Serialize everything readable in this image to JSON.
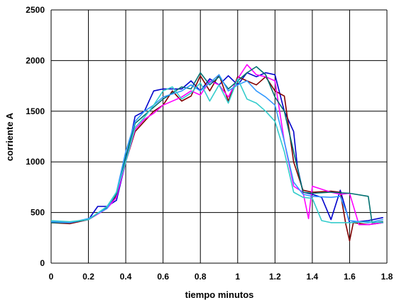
{
  "chart_data": {
    "type": "line",
    "title": "",
    "xlabel": "tiempo minutos",
    "ylabel": "corriente A",
    "xlim": [
      0,
      1.8
    ],
    "ylim": [
      0,
      2500
    ],
    "x_ticks": [
      "0",
      "0.2",
      "0.4",
      "0.6",
      "0.8",
      "1",
      "1.2",
      "1.4",
      "1.6",
      "1.8"
    ],
    "y_ticks": [
      "0",
      "500",
      "1000",
      "1500",
      "2000",
      "2500"
    ],
    "grid": true,
    "legend": "none",
    "series": [
      {
        "color": "#0000cc",
        "points": [
          [
            0,
            410
          ],
          [
            0.1,
            400
          ],
          [
            0.2,
            430
          ],
          [
            0.25,
            560
          ],
          [
            0.3,
            560
          ],
          [
            0.35,
            620
          ],
          [
            0.4,
            1000
          ],
          [
            0.45,
            1450
          ],
          [
            0.5,
            1500
          ],
          [
            0.55,
            1700
          ],
          [
            0.6,
            1720
          ],
          [
            0.7,
            1720
          ],
          [
            0.75,
            1800
          ],
          [
            0.8,
            1700
          ],
          [
            0.85,
            1820
          ],
          [
            0.9,
            1760
          ],
          [
            0.95,
            1850
          ],
          [
            1.0,
            1760
          ],
          [
            1.05,
            1880
          ],
          [
            1.1,
            1840
          ],
          [
            1.15,
            1880
          ],
          [
            1.2,
            1860
          ],
          [
            1.25,
            1500
          ],
          [
            1.3,
            1300
          ],
          [
            1.32,
            950
          ],
          [
            1.35,
            700
          ],
          [
            1.4,
            680
          ],
          [
            1.45,
            650
          ],
          [
            1.5,
            430
          ],
          [
            1.55,
            720
          ],
          [
            1.6,
            400
          ],
          [
            1.7,
            420
          ],
          [
            1.78,
            450
          ]
        ]
      },
      {
        "color": "#800000",
        "points": [
          [
            0,
            400
          ],
          [
            0.1,
            390
          ],
          [
            0.2,
            430
          ],
          [
            0.3,
            550
          ],
          [
            0.35,
            660
          ],
          [
            0.4,
            1000
          ],
          [
            0.45,
            1300
          ],
          [
            0.5,
            1400
          ],
          [
            0.55,
            1500
          ],
          [
            0.6,
            1560
          ],
          [
            0.65,
            1700
          ],
          [
            0.7,
            1600
          ],
          [
            0.75,
            1650
          ],
          [
            0.8,
            1850
          ],
          [
            0.85,
            1700
          ],
          [
            0.9,
            1860
          ],
          [
            0.95,
            1600
          ],
          [
            1.0,
            1840
          ],
          [
            1.05,
            1800
          ],
          [
            1.1,
            1760
          ],
          [
            1.15,
            1840
          ],
          [
            1.2,
            1700
          ],
          [
            1.25,
            1650
          ],
          [
            1.3,
            1000
          ],
          [
            1.35,
            720
          ],
          [
            1.4,
            700
          ],
          [
            1.5,
            710
          ],
          [
            1.55,
            700
          ],
          [
            1.58,
            380
          ],
          [
            1.6,
            220
          ],
          [
            1.62,
            400
          ],
          [
            1.7,
            380
          ],
          [
            1.78,
            400
          ]
        ]
      },
      {
        "color": "#ff00ff",
        "points": [
          [
            0,
            410
          ],
          [
            0.1,
            400
          ],
          [
            0.2,
            430
          ],
          [
            0.3,
            540
          ],
          [
            0.35,
            650
          ],
          [
            0.4,
            1000
          ],
          [
            0.45,
            1320
          ],
          [
            0.5,
            1420
          ],
          [
            0.55,
            1480
          ],
          [
            0.6,
            1560
          ],
          [
            0.7,
            1640
          ],
          [
            0.75,
            1700
          ],
          [
            0.8,
            1660
          ],
          [
            0.85,
            1800
          ],
          [
            0.9,
            1760
          ],
          [
            0.95,
            1640
          ],
          [
            1.0,
            1820
          ],
          [
            1.05,
            1960
          ],
          [
            1.1,
            1860
          ],
          [
            1.15,
            1840
          ],
          [
            1.2,
            1800
          ],
          [
            1.25,
            1200
          ],
          [
            1.3,
            760
          ],
          [
            1.35,
            700
          ],
          [
            1.38,
            440
          ],
          [
            1.4,
            760
          ],
          [
            1.5,
            700
          ],
          [
            1.55,
            680
          ],
          [
            1.6,
            690
          ],
          [
            1.65,
            380
          ],
          [
            1.7,
            380
          ],
          [
            1.78,
            400
          ]
        ]
      },
      {
        "color": "#007070",
        "points": [
          [
            0,
            400
          ],
          [
            0.1,
            400
          ],
          [
            0.2,
            430
          ],
          [
            0.3,
            550
          ],
          [
            0.35,
            680
          ],
          [
            0.4,
            1050
          ],
          [
            0.45,
            1380
          ],
          [
            0.5,
            1460
          ],
          [
            0.55,
            1540
          ],
          [
            0.6,
            1620
          ],
          [
            0.7,
            1740
          ],
          [
            0.75,
            1720
          ],
          [
            0.8,
            1880
          ],
          [
            0.85,
            1760
          ],
          [
            0.9,
            1840
          ],
          [
            0.95,
            1720
          ],
          [
            1.0,
            1800
          ],
          [
            1.05,
            1880
          ],
          [
            1.1,
            1940
          ],
          [
            1.15,
            1860
          ],
          [
            1.2,
            1640
          ],
          [
            1.25,
            1500
          ],
          [
            1.3,
            1100
          ],
          [
            1.35,
            700
          ],
          [
            1.4,
            690
          ],
          [
            1.5,
            700
          ],
          [
            1.6,
            690
          ],
          [
            1.7,
            660
          ],
          [
            1.72,
            400
          ],
          [
            1.78,
            410
          ]
        ]
      },
      {
        "color": "#3399ff",
        "points": [
          [
            0,
            410
          ],
          [
            0.1,
            400
          ],
          [
            0.2,
            440
          ],
          [
            0.3,
            540
          ],
          [
            0.35,
            700
          ],
          [
            0.4,
            1100
          ],
          [
            0.45,
            1400
          ],
          [
            0.5,
            1500
          ],
          [
            0.55,
            1560
          ],
          [
            0.6,
            1640
          ],
          [
            0.7,
            1700
          ],
          [
            0.75,
            1760
          ],
          [
            0.8,
            1700
          ],
          [
            0.85,
            1780
          ],
          [
            0.9,
            1860
          ],
          [
            0.95,
            1700
          ],
          [
            1.0,
            1760
          ],
          [
            1.05,
            1800
          ],
          [
            1.1,
            1700
          ],
          [
            1.15,
            1640
          ],
          [
            1.2,
            1560
          ],
          [
            1.25,
            1200
          ],
          [
            1.3,
            800
          ],
          [
            1.35,
            680
          ],
          [
            1.4,
            660
          ],
          [
            1.5,
            650
          ],
          [
            1.55,
            660
          ],
          [
            1.6,
            420
          ],
          [
            1.7,
            400
          ],
          [
            1.78,
            430
          ]
        ]
      },
      {
        "color": "#33cccc",
        "points": [
          [
            0,
            420
          ],
          [
            0.1,
            410
          ],
          [
            0.2,
            430
          ],
          [
            0.3,
            560
          ],
          [
            0.35,
            700
          ],
          [
            0.4,
            1000
          ],
          [
            0.45,
            1340
          ],
          [
            0.5,
            1440
          ],
          [
            0.55,
            1560
          ],
          [
            0.6,
            1700
          ],
          [
            0.65,
            1740
          ],
          [
            0.7,
            1620
          ],
          [
            0.75,
            1680
          ],
          [
            0.8,
            1780
          ],
          [
            0.85,
            1600
          ],
          [
            0.9,
            1760
          ],
          [
            0.95,
            1580
          ],
          [
            1.0,
            1820
          ],
          [
            1.05,
            1620
          ],
          [
            1.1,
            1580
          ],
          [
            1.15,
            1500
          ],
          [
            1.2,
            1400
          ],
          [
            1.25,
            1100
          ],
          [
            1.3,
            700
          ],
          [
            1.35,
            650
          ],
          [
            1.4,
            640
          ],
          [
            1.45,
            420
          ],
          [
            1.5,
            400
          ],
          [
            1.6,
            400
          ],
          [
            1.7,
            410
          ],
          [
            1.78,
            400
          ]
        ]
      }
    ]
  }
}
